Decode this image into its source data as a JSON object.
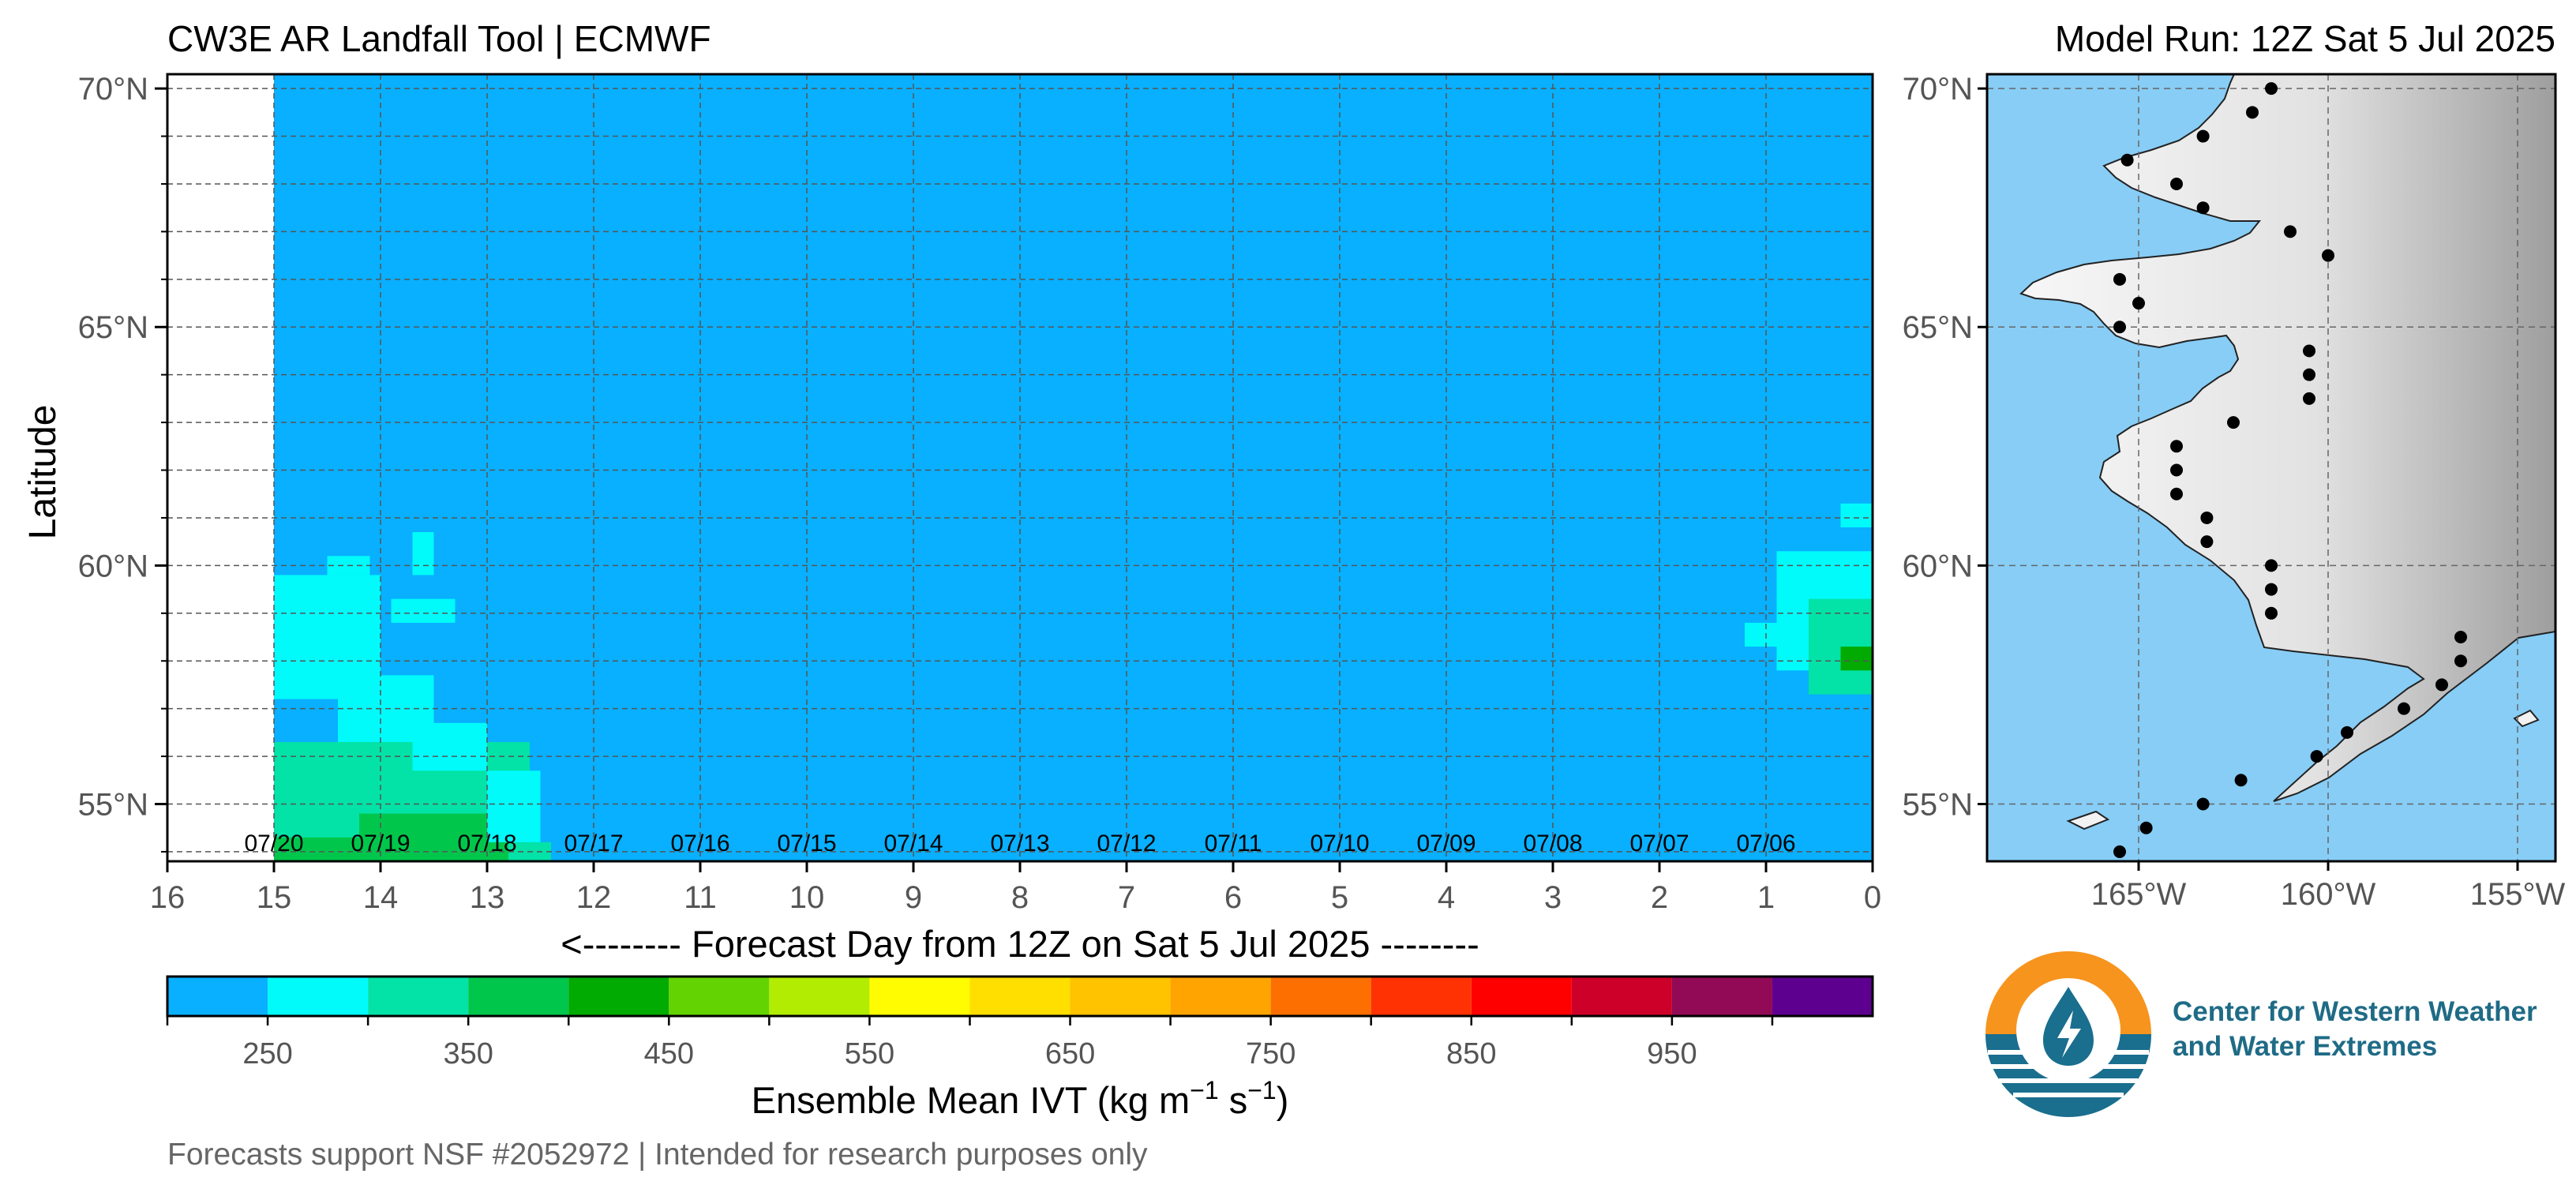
{
  "header": {
    "title_left": "CW3E AR Landfall Tool | ECMWF",
    "title_right": "Model Run: 12Z Sat 5 Jul 2025"
  },
  "footer": {
    "note": "Forecasts support NSF #2052972 | Intended for research purposes only"
  },
  "logo": {
    "line1": "Center for Western Weather",
    "line2": "and Water Extremes",
    "colors": {
      "orange": "#f7941d",
      "teal": "#1a6e8e"
    }
  },
  "chart_data": [
    {
      "type": "heatmap",
      "title": "CW3E AR Landfall Tool | ECMWF",
      "xlabel": "<-------- Forecast Day from 12Z on Sat 5 Jul 2025 --------",
      "ylabel": "Latitude",
      "x_reversed": true,
      "xlim": [
        16,
        0
      ],
      "ylim": [
        53.8,
        70.3
      ],
      "x_ticks": [
        "16",
        "15",
        "14",
        "13",
        "12",
        "11",
        "10",
        "9",
        "8",
        "7",
        "6",
        "5",
        "4",
        "3",
        "2",
        "1",
        "0"
      ],
      "y_ticks": [
        "55°N",
        "60°N",
        "65°N",
        "70°N"
      ],
      "date_labels": [
        {
          "day": 15,
          "label": "07/20"
        },
        {
          "day": 14,
          "label": "07/19"
        },
        {
          "day": 13,
          "label": "07/18"
        },
        {
          "day": 12,
          "label": "07/17"
        },
        {
          "day": 11,
          "label": "07/16"
        },
        {
          "day": 10,
          "label": "07/15"
        },
        {
          "day": 9,
          "label": "07/14"
        },
        {
          "day": 8,
          "label": "07/13"
        },
        {
          "day": 7,
          "label": "07/12"
        },
        {
          "day": 6,
          "label": "07/11"
        },
        {
          "day": 5,
          "label": "07/10"
        },
        {
          "day": 4,
          "label": "07/09"
        },
        {
          "day": 3,
          "label": "07/08"
        },
        {
          "day": 2,
          "label": "07/07"
        },
        {
          "day": 1,
          "label": "07/06"
        }
      ],
      "data_extent": {
        "day_start": 0,
        "day_end": 15,
        "lat_min": 53.8,
        "lat_max": 70.3
      },
      "background_ivt": 225,
      "regions": [
        {
          "day_from": 12.4,
          "day_to": 15,
          "lat_from": 53.8,
          "lat_to": 54.2,
          "ivt": 325
        },
        {
          "day_from": 12.6,
          "day_to": 15,
          "lat_from": 54.2,
          "lat_to": 56.3,
          "ivt": 325
        },
        {
          "day_from": 12.8,
          "day_to": 14.2,
          "lat_from": 53.8,
          "lat_to": 54.8,
          "ivt": 375
        },
        {
          "day_from": 13.9,
          "day_to": 15,
          "lat_from": 53.8,
          "lat_to": 54.3,
          "ivt": 375
        },
        {
          "day_from": 12.5,
          "day_to": 13.0,
          "lat_from": 54.2,
          "lat_to": 55.7,
          "ivt": 275
        },
        {
          "day_from": 13.0,
          "day_to": 13.7,
          "lat_from": 55.7,
          "lat_to": 56.7,
          "ivt": 275
        },
        {
          "day_from": 13.5,
          "day_to": 14.4,
          "lat_from": 56.3,
          "lat_to": 57.7,
          "ivt": 275
        },
        {
          "day_from": 14.0,
          "day_to": 15,
          "lat_from": 57.2,
          "lat_to": 59.8,
          "ivt": 275
        },
        {
          "day_from": 14.1,
          "day_to": 14.5,
          "lat_from": 59.8,
          "lat_to": 60.2,
          "ivt": 275
        },
        {
          "day_from": 13.3,
          "day_to": 13.9,
          "lat_from": 58.8,
          "lat_to": 59.3,
          "ivt": 275
        },
        {
          "day_from": 13.5,
          "day_to": 13.7,
          "lat_from": 59.8,
          "lat_to": 60.7,
          "ivt": 275
        },
        {
          "day_from": 0.0,
          "day_to": 0.9,
          "lat_from": 57.8,
          "lat_to": 60.3,
          "ivt": 275
        },
        {
          "day_from": 0.9,
          "day_to": 1.2,
          "lat_from": 58.3,
          "lat_to": 58.8,
          "ivt": 275
        },
        {
          "day_from": 0.0,
          "day_to": 0.3,
          "lat_from": 60.8,
          "lat_to": 61.3,
          "ivt": 275
        },
        {
          "day_from": 0.0,
          "day_to": 0.6,
          "lat_from": 57.3,
          "lat_to": 59.3,
          "ivt": 325
        },
        {
          "day_from": 0.0,
          "day_to": 0.3,
          "lat_from": 57.8,
          "lat_to": 58.3,
          "ivt": 425
        }
      ]
    },
    {
      "type": "map",
      "xlabel": "",
      "ylabel": "",
      "lon_range": [
        -169,
        -154
      ],
      "lat_range": [
        53.8,
        70.3
      ],
      "lon_ticks": [
        "165°W",
        "160°W",
        "155°W"
      ],
      "lat_ticks": [
        "55°N",
        "60°N",
        "65°N",
        "70°N"
      ],
      "ocean_color": "#87cdf6",
      "points": [
        [
          -161.5,
          70.0
        ],
        [
          -162.0,
          69.5
        ],
        [
          -163.3,
          69.0
        ],
        [
          -165.3,
          68.5
        ],
        [
          -164.0,
          68.0
        ],
        [
          -163.3,
          67.5
        ],
        [
          -161.0,
          67.0
        ],
        [
          -160.0,
          66.5
        ],
        [
          -165.5,
          66.0
        ],
        [
          -165.0,
          65.5
        ],
        [
          -165.5,
          65.0
        ],
        [
          -160.5,
          64.5
        ],
        [
          -160.5,
          64.0
        ],
        [
          -160.5,
          63.5
        ],
        [
          -162.5,
          63.0
        ],
        [
          -164.0,
          62.5
        ],
        [
          -164.0,
          62.0
        ],
        [
          -164.0,
          61.5
        ],
        [
          -163.2,
          61.0
        ],
        [
          -163.2,
          60.5
        ],
        [
          -161.5,
          60.0
        ],
        [
          -161.5,
          59.5
        ],
        [
          -161.5,
          59.0
        ],
        [
          -156.5,
          58.5
        ],
        [
          -156.5,
          58.0
        ],
        [
          -157.0,
          57.5
        ],
        [
          -158.0,
          57.0
        ],
        [
          -159.5,
          56.5
        ],
        [
          -160.3,
          56.0
        ],
        [
          -162.3,
          55.5
        ],
        [
          -163.3,
          55.0
        ],
        [
          -164.8,
          54.5
        ],
        [
          -165.5,
          54.0
        ]
      ]
    },
    {
      "type": "colorbar",
      "xlabel": "Ensemble Mean IVT (kg m",
      "xlabel_exp1": "−1",
      "xlabel_mid": " s",
      "xlabel_exp2": "−1",
      "xlabel_end": ")",
      "range": [
        200,
        1050
      ],
      "bins": [
        {
          "from": 200,
          "to": 250,
          "color": "#08b0ff"
        },
        {
          "from": 250,
          "to": 300,
          "color": "#00fbfa"
        },
        {
          "from": 300,
          "to": 350,
          "color": "#03e3a7"
        },
        {
          "from": 350,
          "to": 400,
          "color": "#00c74c"
        },
        {
          "from": 400,
          "to": 450,
          "color": "#01ab02"
        },
        {
          "from": 450,
          "to": 500,
          "color": "#63d302"
        },
        {
          "from": 500,
          "to": 550,
          "color": "#b2ec03"
        },
        {
          "from": 550,
          "to": 600,
          "color": "#fffb00"
        },
        {
          "from": 600,
          "to": 650,
          "color": "#fedf00"
        },
        {
          "from": 650,
          "to": 700,
          "color": "#ffc300"
        },
        {
          "from": 700,
          "to": 750,
          "color": "#ffa401"
        },
        {
          "from": 750,
          "to": 800,
          "color": "#fd6f00"
        },
        {
          "from": 800,
          "to": 850,
          "color": "#ff3203"
        },
        {
          "from": 850,
          "to": 900,
          "color": "#fe0000"
        },
        {
          "from": 900,
          "to": 950,
          "color": "#cd0029"
        },
        {
          "from": 950,
          "to": 1000,
          "color": "#920a55"
        },
        {
          "from": 1000,
          "to": 1050,
          "color": "#5d008f"
        }
      ],
      "tick_labels": [
        {
          "value": 250,
          "label": "250"
        },
        {
          "value": 350,
          "label": "350"
        },
        {
          "value": 450,
          "label": "450"
        },
        {
          "value": 550,
          "label": "550"
        },
        {
          "value": 650,
          "label": "650"
        },
        {
          "value": 750,
          "label": "750"
        },
        {
          "value": 850,
          "label": "850"
        },
        {
          "value": 950,
          "label": "950"
        }
      ]
    }
  ]
}
